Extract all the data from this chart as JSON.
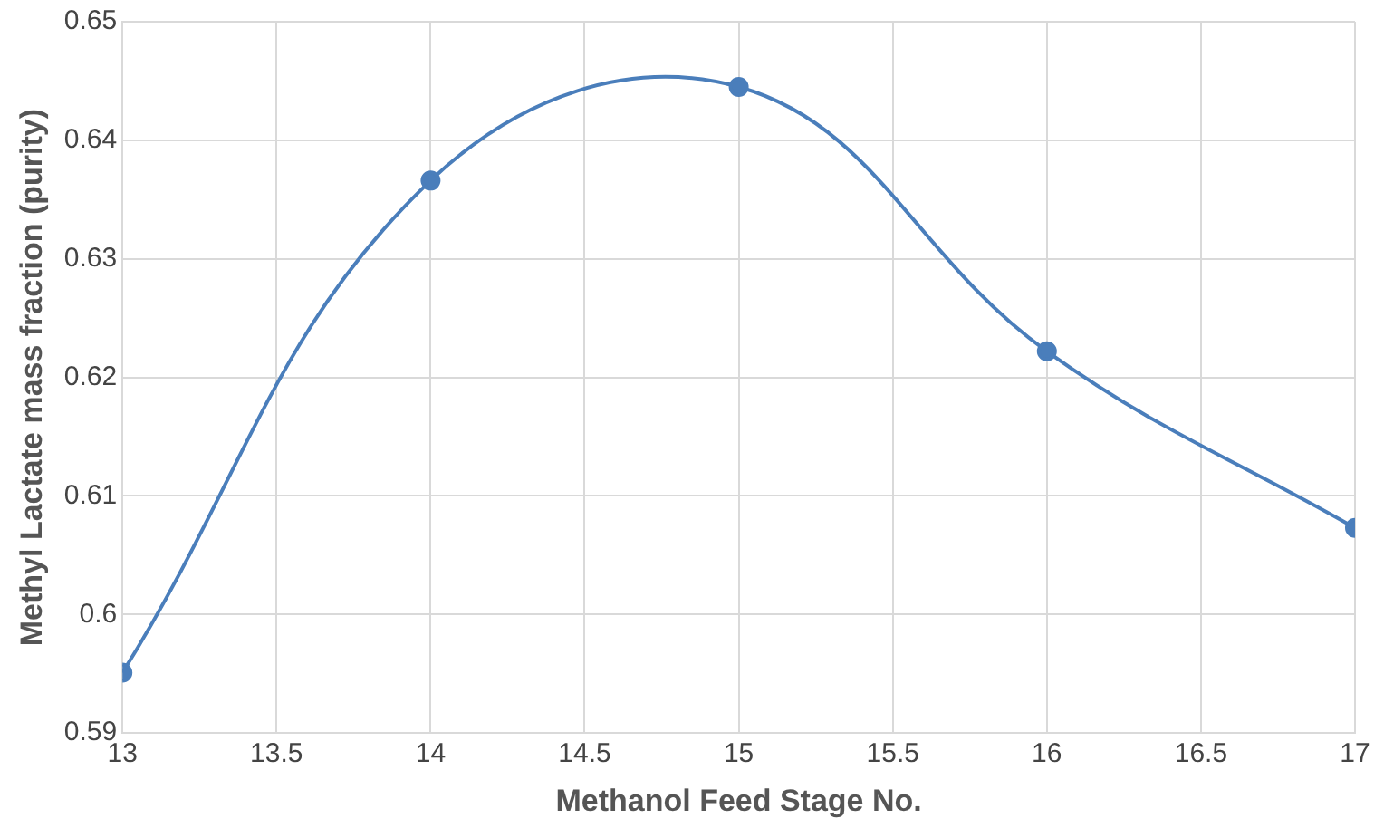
{
  "chart_data": {
    "type": "line",
    "xlabel": "Methanol Feed Stage No.",
    "ylabel": "Methyl Lactate mass fraction (purity)",
    "x": [
      13,
      14,
      15,
      16,
      17
    ],
    "series": [
      {
        "color": "#4a7ebb",
        "values": [
          0.5951,
          0.6366,
          0.6445,
          0.6222,
          0.6073
        ]
      }
    ],
    "xlim": [
      13,
      17
    ],
    "xticks": [
      13,
      13.5,
      14,
      14.5,
      15,
      15.5,
      16,
      16.5,
      17
    ],
    "ylim": [
      0.59,
      0.65
    ],
    "yticks": [
      0.59,
      0.6,
      0.61,
      0.62,
      0.63,
      0.64,
      0.65
    ],
    "grid": true,
    "legend": false,
    "marker": "circle",
    "line_style": "solid"
  }
}
